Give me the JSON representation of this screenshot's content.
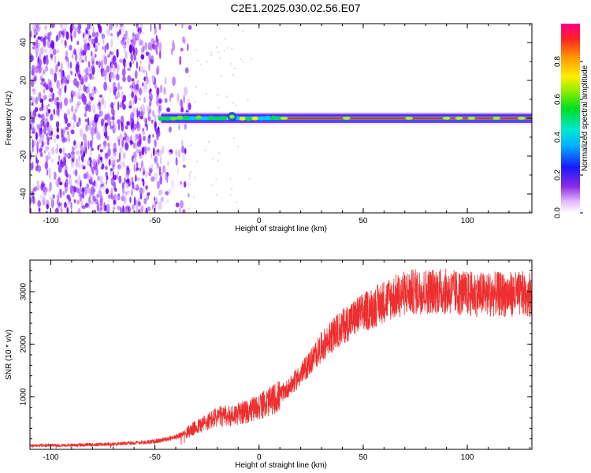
{
  "title": "C2E1.2025.030.02.56.E07",
  "chart_data": [
    {
      "type": "heatmap",
      "xlabel": "Height of straight line (km)",
      "ylabel": "Frequency (Hz)",
      "xlim": [
        -110,
        131
      ],
      "ylim": [
        -50,
        50
      ],
      "xticks": [
        -100,
        -50,
        0,
        50,
        100
      ],
      "yticks": [
        -40,
        -20,
        0,
        20,
        40
      ],
      "colorbar": {
        "label": "Normalized spectral amplitude",
        "range": [
          0,
          1
        ],
        "ticks": [
          "0.0",
          "0.2",
          "0.4",
          "0.6",
          "0.8"
        ],
        "tick_values": [
          0,
          0.2,
          0.4,
          0.6,
          0.8
        ]
      },
      "signal_band": {
        "frequency_hz": 0,
        "x_start_km": -47,
        "x_end_km": 131
      },
      "noise_region": {
        "x_start_km": -110,
        "x_end_km": -35
      }
    },
    {
      "type": "line",
      "xlabel": "Height of straight line (km)",
      "ylabel": "SNR (10 * v/v)",
      "xlim": [
        -110,
        131
      ],
      "ylim": [
        0,
        3600
      ],
      "xticks": [
        -100,
        -50,
        0,
        50,
        100
      ],
      "yticks": [
        1000,
        2000,
        3000
      ],
      "color": "#ee2f2f",
      "series": [
        {
          "x": [
            -110,
            -90,
            -70,
            -50,
            -40,
            -35,
            -30,
            -25,
            -20,
            -15,
            -10,
            -5,
            0,
            5,
            10,
            15,
            20,
            25,
            30,
            35,
            40,
            45,
            50,
            55,
            60,
            65,
            70,
            75,
            80,
            85,
            90,
            95,
            100,
            110,
            120,
            131
          ],
          "values": [
            70,
            80,
            100,
            150,
            230,
            320,
            420,
            520,
            620,
            630,
            680,
            720,
            820,
            900,
            1030,
            1200,
            1420,
            1680,
            1950,
            2150,
            2330,
            2480,
            2600,
            2700,
            2820,
            2900,
            2970,
            3000,
            3010,
            3020,
            3000,
            2980,
            2960,
            2950,
            2950,
            2960
          ]
        }
      ]
    }
  ]
}
